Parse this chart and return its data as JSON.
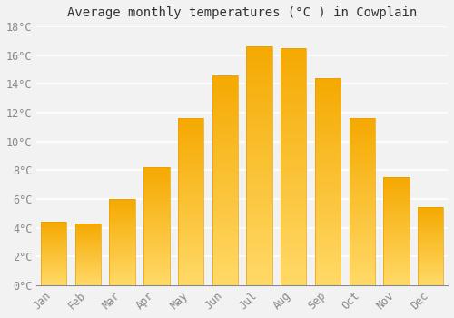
{
  "title": "Average monthly temperatures (°C ) in Cowplain",
  "months": [
    "Jan",
    "Feb",
    "Mar",
    "Apr",
    "May",
    "Jun",
    "Jul",
    "Aug",
    "Sep",
    "Oct",
    "Nov",
    "Dec"
  ],
  "values": [
    4.4,
    4.3,
    6.0,
    8.2,
    11.6,
    14.6,
    16.6,
    16.5,
    14.4,
    11.6,
    7.5,
    5.4
  ],
  "bar_color_top": "#F5A800",
  "bar_color_bottom": "#FFD966",
  "bar_edge_color": "#E8A000",
  "ylim": [
    0,
    18
  ],
  "yticks": [
    0,
    2,
    4,
    6,
    8,
    10,
    12,
    14,
    16,
    18
  ],
  "ytick_labels": [
    "0°C",
    "2°C",
    "4°C",
    "6°C",
    "8°C",
    "10°C",
    "12°C",
    "14°C",
    "16°C",
    "18°C"
  ],
  "background_color": "#F2F2F2",
  "grid_color": "#FFFFFF",
  "title_fontsize": 10,
  "tick_fontsize": 8.5,
  "bar_width": 0.75
}
